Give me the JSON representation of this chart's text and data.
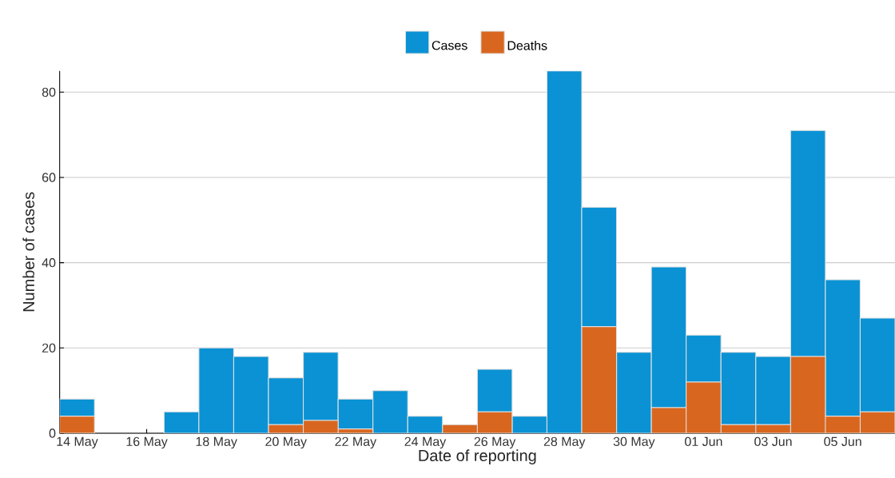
{
  "chart_data": {
    "type": "bar",
    "stacked": true,
    "xlabel": "Date of reporting",
    "ylabel": "Number of cases",
    "categories": [
      "14 May",
      null,
      "16 May",
      null,
      "18 May",
      null,
      "20 May",
      null,
      "22 May",
      null,
      "24 May",
      null,
      "26 May",
      null,
      "28 May",
      null,
      "30 May",
      null,
      "01 Jun",
      null,
      "03 Jun",
      null,
      "05 Jun",
      null
    ],
    "series": [
      {
        "name": "Deaths",
        "color": "#d9661f",
        "values": [
          4,
          0,
          0,
          0,
          0,
          0,
          2,
          3,
          1,
          0,
          0,
          2,
          5,
          0,
          0,
          25,
          0,
          6,
          12,
          2,
          2,
          18,
          4,
          5
        ]
      },
      {
        "name": "Cases",
        "color": "#0a92d4",
        "values": [
          4,
          0,
          0,
          5,
          20,
          18,
          11,
          16,
          7,
          10,
          4,
          0,
          10,
          4,
          85,
          28,
          19,
          33,
          11,
          17,
          16,
          53,
          32,
          22
        ]
      }
    ],
    "ylim": [
      0,
      85
    ],
    "yticks": [
      0,
      20,
      40,
      60,
      80
    ],
    "grid": "y",
    "legend": "top"
  }
}
